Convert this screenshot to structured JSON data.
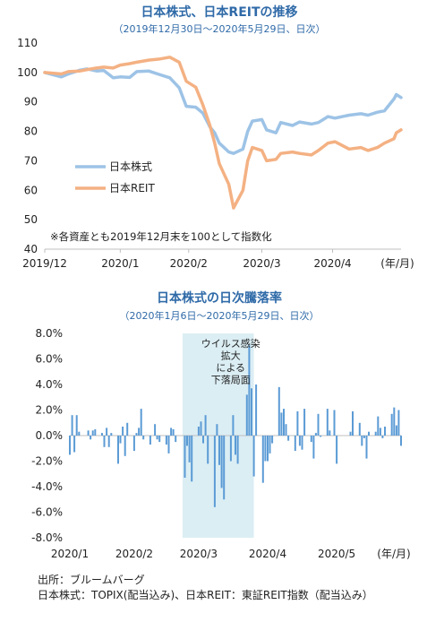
{
  "chart_data": [
    {
      "type": "line",
      "title": "日本株式、日本REITの推移",
      "subtitle": "（2019年12月30日～2020年5月29日、日次）",
      "note": "※各資産とも2019年12月末を100として指数化",
      "x_unit": "(年/月)",
      "x_ticks": [
        "2019/12",
        "2020/1",
        "2020/2",
        "2020/3",
        "2020/4"
      ],
      "x_tick_dates": [
        "2019-12-30",
        "2020-01-31",
        "2020-02-29",
        "2020-03-31",
        "2020-04-30"
      ],
      "ylim": [
        40,
        110
      ],
      "y_ticks": [
        "40",
        "50",
        "60",
        "70",
        "80",
        "90",
        "100",
        "110"
      ],
      "legend_placement": "left-middle",
      "series": [
        {
          "name": "日本株式",
          "color": "#9dc3e6",
          "points": [
            [
              "2019-12-30",
              100
            ],
            [
              "2020-01-06",
              98.5
            ],
            [
              "2020-01-09",
              99.5
            ],
            [
              "2020-01-14",
              100.8
            ],
            [
              "2020-01-17",
              101.2
            ],
            [
              "2020-01-21",
              100.5
            ],
            [
              "2020-01-24",
              100.7
            ],
            [
              "2020-01-28",
              98.2
            ],
            [
              "2020-01-31",
              98.5
            ],
            [
              "2020-02-04",
              98.3
            ],
            [
              "2020-02-07",
              100.3
            ],
            [
              "2020-02-12",
              100.5
            ],
            [
              "2020-02-17",
              99.2
            ],
            [
              "2020-02-21",
              98.2
            ],
            [
              "2020-02-25",
              94.8
            ],
            [
              "2020-02-28",
              88.5
            ],
            [
              "2020-03-03",
              88.2
            ],
            [
              "2020-03-06",
              86.2
            ],
            [
              "2020-03-09",
              81.5
            ],
            [
              "2020-03-11",
              79.5
            ],
            [
              "2020-03-13",
              76.0
            ],
            [
              "2020-03-17",
              73.0
            ],
            [
              "2020-03-19",
              72.5
            ],
            [
              "2020-03-23",
              74.0
            ],
            [
              "2020-03-25",
              80.0
            ],
            [
              "2020-03-27",
              83.5
            ],
            [
              "2020-03-31",
              84.0
            ],
            [
              "2020-04-02",
              80.5
            ],
            [
              "2020-04-06",
              79.5
            ],
            [
              "2020-04-08",
              83.0
            ],
            [
              "2020-04-13",
              82.0
            ],
            [
              "2020-04-16",
              83.2
            ],
            [
              "2020-04-21",
              82.5
            ],
            [
              "2020-04-24",
              83.0
            ],
            [
              "2020-04-28",
              85.0
            ],
            [
              "2020-05-01",
              84.5
            ],
            [
              "2020-05-07",
              85.5
            ],
            [
              "2020-05-12",
              86.0
            ],
            [
              "2020-05-15",
              85.5
            ],
            [
              "2020-05-19",
              86.5
            ],
            [
              "2020-05-22",
              87.0
            ],
            [
              "2020-05-26",
              91.0
            ],
            [
              "2020-05-27",
              92.5
            ],
            [
              "2020-05-29",
              91.5
            ]
          ]
        },
        {
          "name": "日本REIT",
          "color": "#f4b183",
          "points": [
            [
              "2019-12-30",
              100
            ],
            [
              "2020-01-06",
              99.5
            ],
            [
              "2020-01-09",
              100.3
            ],
            [
              "2020-01-14",
              100.5
            ],
            [
              "2020-01-17",
              101.0
            ],
            [
              "2020-01-21",
              101.5
            ],
            [
              "2020-01-24",
              101.8
            ],
            [
              "2020-01-28",
              101.5
            ],
            [
              "2020-01-31",
              102.5
            ],
            [
              "2020-02-04",
              103.0
            ],
            [
              "2020-02-07",
              103.5
            ],
            [
              "2020-02-12",
              104.2
            ],
            [
              "2020-02-17",
              104.6
            ],
            [
              "2020-02-21",
              105.2
            ],
            [
              "2020-02-25",
              103.5
            ],
            [
              "2020-02-28",
              97.0
            ],
            [
              "2020-03-03",
              95.0
            ],
            [
              "2020-03-06",
              89.0
            ],
            [
              "2020-03-09",
              82.0
            ],
            [
              "2020-03-11",
              76.0
            ],
            [
              "2020-03-13",
              69.0
            ],
            [
              "2020-03-17",
              62.0
            ],
            [
              "2020-03-19",
              54.0
            ],
            [
              "2020-03-23",
              60.0
            ],
            [
              "2020-03-25",
              70.0
            ],
            [
              "2020-03-27",
              74.5
            ],
            [
              "2020-03-31",
              73.5
            ],
            [
              "2020-04-02",
              70.0
            ],
            [
              "2020-04-06",
              70.5
            ],
            [
              "2020-04-08",
              72.5
            ],
            [
              "2020-04-13",
              73.0
            ],
            [
              "2020-04-16",
              72.5
            ],
            [
              "2020-04-21",
              72.0
            ],
            [
              "2020-04-24",
              73.5
            ],
            [
              "2020-04-28",
              76.0
            ],
            [
              "2020-05-01",
              76.5
            ],
            [
              "2020-05-07",
              74.0
            ],
            [
              "2020-05-12",
              74.5
            ],
            [
              "2020-05-15",
              73.5
            ],
            [
              "2020-05-19",
              74.5
            ],
            [
              "2020-05-22",
              76.0
            ],
            [
              "2020-05-26",
              77.5
            ],
            [
              "2020-05-27",
              79.5
            ],
            [
              "2020-05-29",
              80.5
            ]
          ]
        }
      ]
    },
    {
      "type": "bar",
      "title": "日本株式の日次騰落率",
      "subtitle": "（2020年1月6日～2020年5月29日、日次）",
      "x_unit": "(年/月)",
      "x_ticks": [
        "2020/1",
        "2020/2",
        "2020/3",
        "2020/4",
        "2020/5"
      ],
      "x_tick_dates": [
        "2020-01-06",
        "2020-02-03",
        "2020-03-02",
        "2020-04-01",
        "2020-05-01"
      ],
      "ylim": [
        -8.0,
        8.0
      ],
      "y_ticks": [
        "8.0%",
        "6.0%",
        "4.0%",
        "2.0%",
        "0.0%",
        "-2.0%",
        "-4.0%",
        "-6.0%",
        "-8.0%"
      ],
      "bar_color": "#5b9bd5",
      "highlight": {
        "start": "2020-02-24",
        "end": "2020-03-26",
        "color": "#dbeef4",
        "label_lines": [
          "ウイルス感染",
          "拡大",
          "による",
          "下落局面"
        ]
      },
      "series": [
        {
          "values": [
            [
              "2020-01-06",
              -1.5
            ],
            [
              "2020-01-07",
              1.6
            ],
            [
              "2020-01-08",
              -1.3
            ],
            [
              "2020-01-09",
              1.6
            ],
            [
              "2020-01-10",
              0.3
            ],
            [
              "2020-01-14",
              0.4
            ],
            [
              "2020-01-15",
              -0.3
            ],
            [
              "2020-01-16",
              0.4
            ],
            [
              "2020-01-17",
              0.5
            ],
            [
              "2020-01-20",
              0.2
            ],
            [
              "2020-01-21",
              -0.9
            ],
            [
              "2020-01-22",
              0.6
            ],
            [
              "2020-01-23",
              -0.9
            ],
            [
              "2020-01-24",
              0.2
            ],
            [
              "2020-01-27",
              -2.2
            ],
            [
              "2020-01-28",
              -0.6
            ],
            [
              "2020-01-29",
              0.7
            ],
            [
              "2020-01-30",
              -1.6
            ],
            [
              "2020-01-31",
              1.0
            ],
            [
              "2020-02-03",
              -1.2
            ],
            [
              "2020-02-04",
              0.2
            ],
            [
              "2020-02-05",
              0.6
            ],
            [
              "2020-02-06",
              2.1
            ],
            [
              "2020-02-07",
              -0.3
            ],
            [
              "2020-02-10",
              -0.7
            ],
            [
              "2020-02-12",
              0.9
            ],
            [
              "2020-02-13",
              -0.3
            ],
            [
              "2020-02-14",
              -0.5
            ],
            [
              "2020-02-17",
              -0.7
            ],
            [
              "2020-02-18",
              -1.4
            ],
            [
              "2020-02-19",
              0.6
            ],
            [
              "2020-02-20",
              0.5
            ],
            [
              "2020-02-21",
              -0.5
            ],
            [
              "2020-02-25",
              -3.3
            ],
            [
              "2020-02-26",
              -0.8
            ],
            [
              "2020-02-27",
              -2.1
            ],
            [
              "2020-02-28",
              -3.6
            ],
            [
              "2020-03-02",
              0.7
            ],
            [
              "2020-03-03",
              1.1
            ],
            [
              "2020-03-04",
              -0.6
            ],
            [
              "2020-03-05",
              1.6
            ],
            [
              "2020-03-06",
              -2.2
            ],
            [
              "2020-03-09",
              -5.6
            ],
            [
              "2020-03-10",
              0.9
            ],
            [
              "2020-03-11",
              -2.3
            ],
            [
              "2020-03-12",
              -4.1
            ],
            [
              "2020-03-13",
              -5.0
            ],
            [
              "2020-03-16",
              -2.0
            ],
            [
              "2020-03-17",
              1.6
            ],
            [
              "2020-03-18",
              -1.5
            ],
            [
              "2020-03-19",
              -2.2
            ],
            [
              "2020-03-23",
              3.2
            ],
            [
              "2020-03-24",
              7.1
            ],
            [
              "2020-03-25",
              3.7
            ],
            [
              "2020-03-26",
              -3.2
            ],
            [
              "2020-03-27",
              4.0
            ],
            [
              "2020-03-30",
              -3.7
            ],
            [
              "2020-03-31",
              -2.0
            ],
            [
              "2020-04-01",
              -2.0
            ],
            [
              "2020-04-02",
              -1.4
            ],
            [
              "2020-04-03",
              -0.6
            ],
            [
              "2020-04-06",
              3.8
            ],
            [
              "2020-04-07",
              1.8
            ],
            [
              "2020-04-08",
              2.1
            ],
            [
              "2020-04-09",
              0.9
            ],
            [
              "2020-04-10",
              -0.4
            ],
            [
              "2020-04-13",
              -1.2
            ],
            [
              "2020-04-14",
              1.9
            ],
            [
              "2020-04-15",
              -0.8
            ],
            [
              "2020-04-16",
              -1.1
            ],
            [
              "2020-04-17",
              2.1
            ],
            [
              "2020-04-20",
              -0.5
            ],
            [
              "2020-04-21",
              -1.8
            ],
            [
              "2020-04-22",
              0.2
            ],
            [
              "2020-04-23",
              1.7
            ],
            [
              "2020-04-24",
              -0.1
            ],
            [
              "2020-04-27",
              2.1
            ],
            [
              "2020-04-28",
              0.4
            ],
            [
              "2020-04-30",
              2.0
            ],
            [
              "2020-05-01",
              -2.2
            ],
            [
              "2020-05-07",
              0.3
            ],
            [
              "2020-05-08",
              1.9
            ],
            [
              "2020-05-11",
              1.0
            ],
            [
              "2020-05-12",
              -0.8
            ],
            [
              "2020-05-13",
              -0.2
            ],
            [
              "2020-05-14",
              -1.8
            ],
            [
              "2020-05-15",
              0.3
            ],
            [
              "2020-05-18",
              0.3
            ],
            [
              "2020-05-19",
              1.5
            ],
            [
              "2020-05-20",
              0.6
            ],
            [
              "2020-05-21",
              -0.2
            ],
            [
              "2020-05-22",
              0.7
            ],
            [
              "2020-05-25",
              1.7
            ],
            [
              "2020-05-26",
              2.2
            ],
            [
              "2020-05-27",
              0.8
            ],
            [
              "2020-05-28",
              2.0
            ],
            [
              "2020-05-29",
              -0.8
            ]
          ]
        }
      ]
    }
  ],
  "source": {
    "line1": "出所：ブルームバーグ",
    "line2": "日本株式：TOPIX(配当込み)、日本REIT：東証REIT指数（配当込み）"
  }
}
